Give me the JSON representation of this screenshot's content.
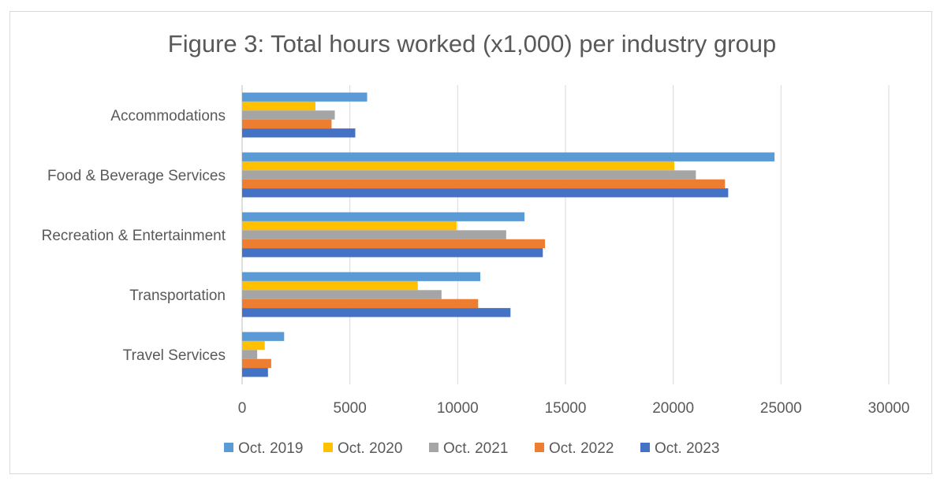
{
  "chart_data": {
    "type": "bar",
    "orientation": "horizontal",
    "title": "Figure 3: Total hours worked (x1,000) per industry group",
    "categories": [
      "Accommodations",
      "Food & Beverage Services",
      "Recreation & Entertainment",
      "Transportation",
      "Travel Services"
    ],
    "series": [
      {
        "name": "Oct. 2019",
        "color": "#5B9BD5",
        "values": [
          5800,
          24700,
          13100,
          11050,
          1950
        ]
      },
      {
        "name": "Oct. 2020",
        "color": "#FFC000",
        "values": [
          3400,
          20050,
          9950,
          8150,
          1050
        ]
      },
      {
        "name": "Oct. 2021",
        "color": "#A5A5A5",
        "values": [
          4300,
          21050,
          12250,
          9250,
          700
        ]
      },
      {
        "name": "Oct. 2022",
        "color": "#ED7D31",
        "values": [
          4150,
          22400,
          14050,
          10950,
          1350
        ]
      },
      {
        "name": "Oct. 2023",
        "color": "#4472C4",
        "values": [
          5250,
          22550,
          13950,
          12450,
          1200
        ]
      }
    ],
    "xlim": [
      0,
      30000
    ],
    "xticks": [
      "0",
      "5000",
      "10000",
      "15000",
      "20000",
      "25000",
      "30000"
    ],
    "grid": "vertical",
    "legend": "bottom"
  }
}
